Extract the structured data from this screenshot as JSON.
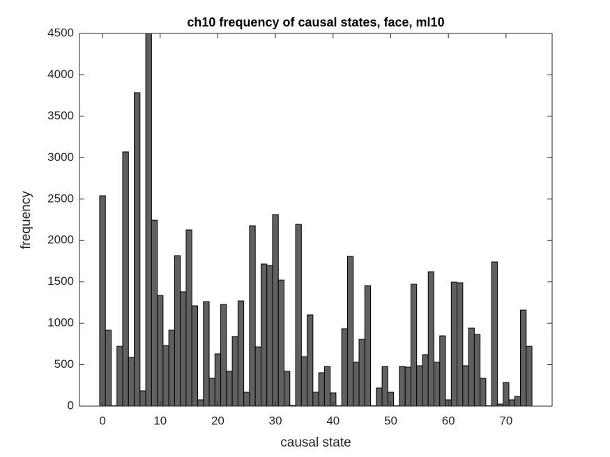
{
  "chart_data": {
    "type": "bar",
    "title": "ch10 frequency of causal states, face, ml10",
    "x_label": "causal state",
    "y_label": "frequency",
    "x": [
      0,
      1,
      2,
      3,
      4,
      5,
      6,
      7,
      8,
      9,
      10,
      11,
      12,
      13,
      14,
      15,
      16,
      17,
      18,
      19,
      20,
      21,
      22,
      23,
      24,
      25,
      26,
      27,
      28,
      29,
      30,
      31,
      32,
      33,
      34,
      35,
      36,
      37,
      38,
      39,
      40,
      41,
      42,
      43,
      44,
      45,
      46,
      47,
      48,
      49,
      50,
      51,
      52,
      53,
      54,
      55,
      56,
      57,
      58,
      59,
      60,
      61,
      62,
      63,
      64,
      65,
      66,
      67,
      68,
      69,
      70,
      71,
      72,
      73,
      74
    ],
    "values": [
      2540,
      917,
      5,
      723,
      3070,
      589,
      3785,
      185,
      4500,
      2245,
      1337,
      732,
      917,
      1817,
      1380,
      2128,
      1211,
      76,
      1262,
      336,
      631,
      1228,
      421,
      841,
      1270,
      168,
      2178,
      715,
      1716,
      1699,
      2313,
      1522,
      421,
      8,
      2195,
      597,
      1102,
      168,
      404,
      479,
      160,
      5,
      934,
      1808,
      530,
      807,
      1455,
      5,
      219,
      479,
      168,
      5,
      479,
      471,
      1472,
      488,
      622,
      1623,
      530,
      849,
      76,
      1497,
      1489,
      488,
      942,
      866,
      336,
      5,
      1741,
      25,
      286,
      76,
      118,
      1160,
      723
    ],
    "color": "#606060",
    "xlim": [
      -4,
      78
    ],
    "xticks": [
      0,
      10,
      20,
      30,
      40,
      50,
      60,
      70
    ],
    "ylim": [
      0,
      4500
    ],
    "yticks": [
      0,
      500,
      1000,
      1500,
      2000,
      2500,
      3000,
      3500,
      4000,
      4500
    ]
  }
}
